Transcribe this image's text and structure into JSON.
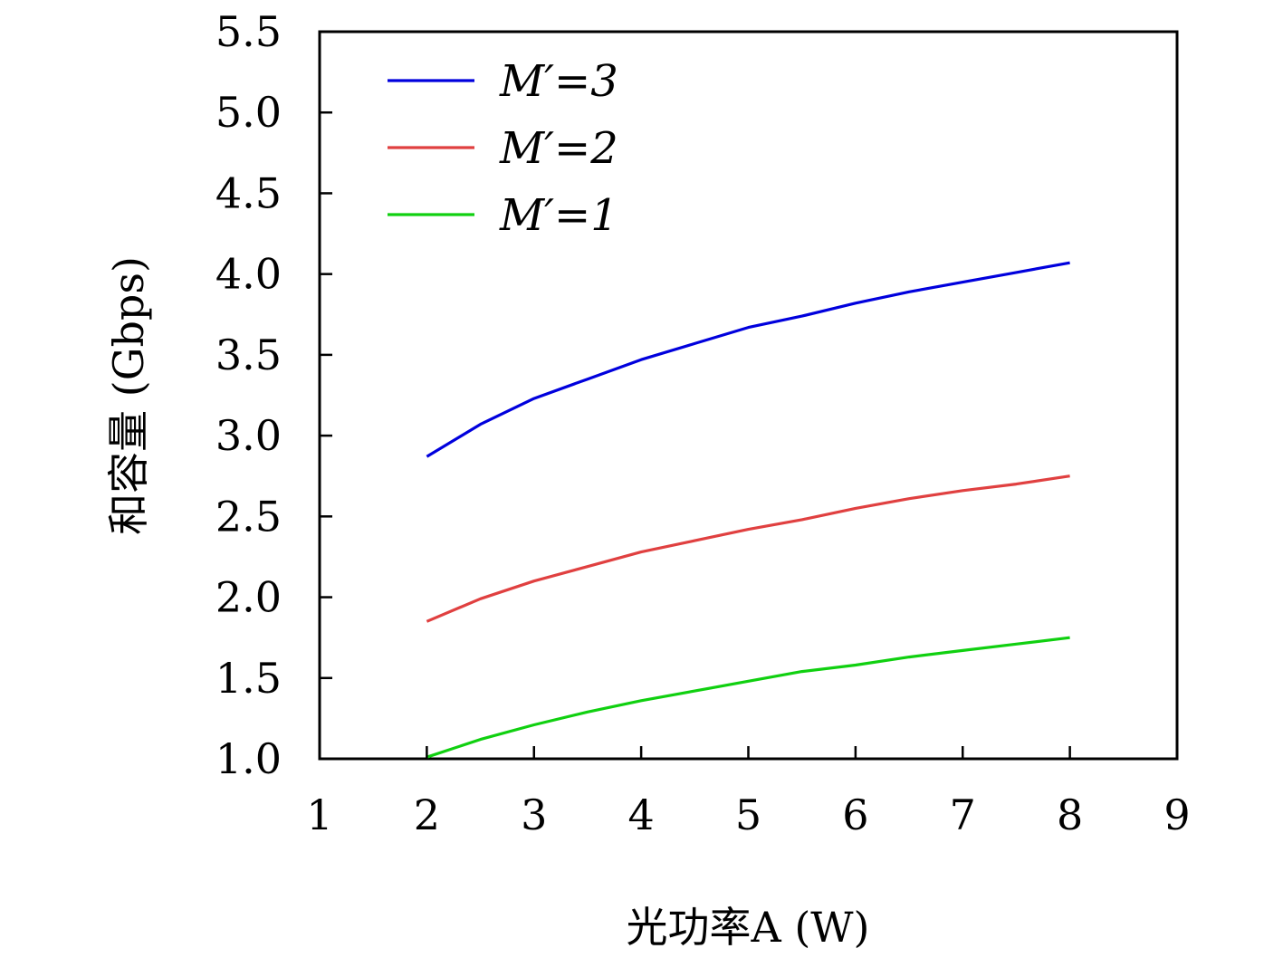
{
  "chart_data": {
    "type": "line",
    "xlabel": "光功率A (W)",
    "ylabel": "和容量 (Gbps)",
    "xlim": [
      1,
      9
    ],
    "ylim": [
      1.0,
      5.5
    ],
    "xticks": [
      "1",
      "2",
      "3",
      "4",
      "5",
      "6",
      "7",
      "8",
      "9"
    ],
    "yticks": [
      "1.0",
      "1.5",
      "2.0",
      "2.5",
      "3.0",
      "3.5",
      "4.0",
      "4.5",
      "5.0",
      "5.5"
    ],
    "grid": false,
    "legend_position": "top-left",
    "series": [
      {
        "name": "M′=3",
        "color": "#0000dd",
        "x": [
          2,
          2.5,
          3,
          3.5,
          4,
          4.5,
          5,
          5.5,
          6,
          6.5,
          7,
          7.5,
          8
        ],
        "y": [
          2.87,
          3.07,
          3.23,
          3.35,
          3.47,
          3.57,
          3.67,
          3.74,
          3.82,
          3.89,
          3.95,
          4.01,
          4.07
        ]
      },
      {
        "name": "M′=2",
        "color": "#e04040",
        "x": [
          2,
          2.5,
          3,
          3.5,
          4,
          4.5,
          5,
          5.5,
          6,
          6.5,
          7,
          7.5,
          8
        ],
        "y": [
          1.85,
          1.99,
          2.1,
          2.19,
          2.28,
          2.35,
          2.42,
          2.48,
          2.55,
          2.61,
          2.66,
          2.7,
          2.75
        ]
      },
      {
        "name": "M′=1",
        "color": "#10d010",
        "x": [
          2,
          2.5,
          3,
          3.5,
          4,
          4.5,
          5,
          5.5,
          6,
          6.5,
          7,
          7.5,
          8
        ],
        "y": [
          1.01,
          1.12,
          1.21,
          1.29,
          1.36,
          1.42,
          1.48,
          1.54,
          1.58,
          1.63,
          1.67,
          1.71,
          1.75
        ]
      }
    ]
  }
}
